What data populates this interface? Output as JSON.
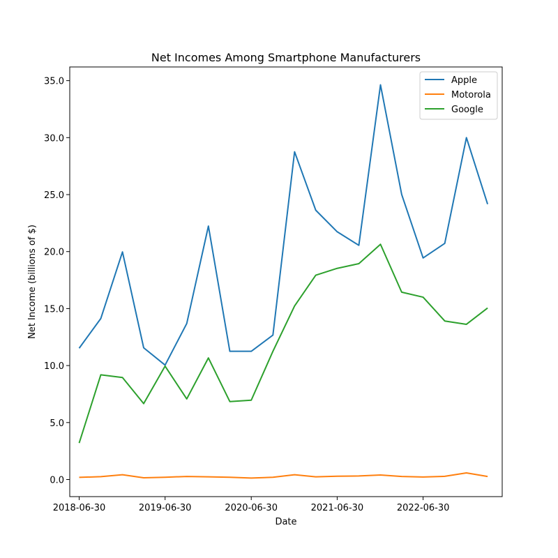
{
  "chart_data": {
    "type": "line",
    "title": "Net Incomes Among Smartphone Manufacturers",
    "xlabel": "Date",
    "ylabel": "Net Income (billions of $)",
    "x": [
      "2018-06-30",
      "2018-09-30",
      "2018-12-31",
      "2019-03-31",
      "2019-06-30",
      "2019-09-30",
      "2019-12-31",
      "2020-03-31",
      "2020-06-30",
      "2020-09-30",
      "2020-12-31",
      "2021-03-31",
      "2021-06-30",
      "2021-09-30",
      "2021-12-31",
      "2022-03-31",
      "2022-06-30",
      "2022-09-30",
      "2022-12-31",
      "2023-03-31"
    ],
    "x_ticks": [
      "2018-06-30",
      "2019-06-30",
      "2020-06-30",
      "2021-06-30",
      "2022-06-30"
    ],
    "xlim": [
      "2018-05-21",
      "2023-06-01"
    ],
    "ylim": [
      -1.5,
      36.2
    ],
    "y_ticks": [
      0.0,
      5.0,
      10.0,
      15.0,
      20.0,
      25.0,
      30.0,
      35.0
    ],
    "y_tick_labels": [
      "0.0",
      "5.0",
      "10.0",
      "15.0",
      "20.0",
      "25.0",
      "30.0",
      "35.0"
    ],
    "grid": false,
    "legend_position": "top-right",
    "series": [
      {
        "name": "Apple",
        "color": "#1f77b4",
        "values": [
          11.52,
          14.13,
          19.97,
          11.56,
          10.04,
          13.69,
          22.24,
          11.25,
          11.25,
          12.67,
          28.76,
          23.63,
          21.74,
          20.55,
          34.63,
          25.01,
          19.44,
          20.72,
          30.0,
          24.16
        ]
      },
      {
        "name": "Motorola",
        "color": "#ff7f0e",
        "values": [
          0.19,
          0.25,
          0.42,
          0.15,
          0.2,
          0.27,
          0.24,
          0.2,
          0.13,
          0.2,
          0.42,
          0.24,
          0.29,
          0.31,
          0.4,
          0.27,
          0.22,
          0.28,
          0.58,
          0.27
        ]
      },
      {
        "name": "Google",
        "color": "#2ca02c",
        "values": [
          3.2,
          9.19,
          8.95,
          6.66,
          9.95,
          7.07,
          10.67,
          6.84,
          6.96,
          11.25,
          15.23,
          17.93,
          18.53,
          18.94,
          20.64,
          16.44,
          16.0,
          13.91,
          13.62,
          15.05
        ]
      }
    ]
  }
}
